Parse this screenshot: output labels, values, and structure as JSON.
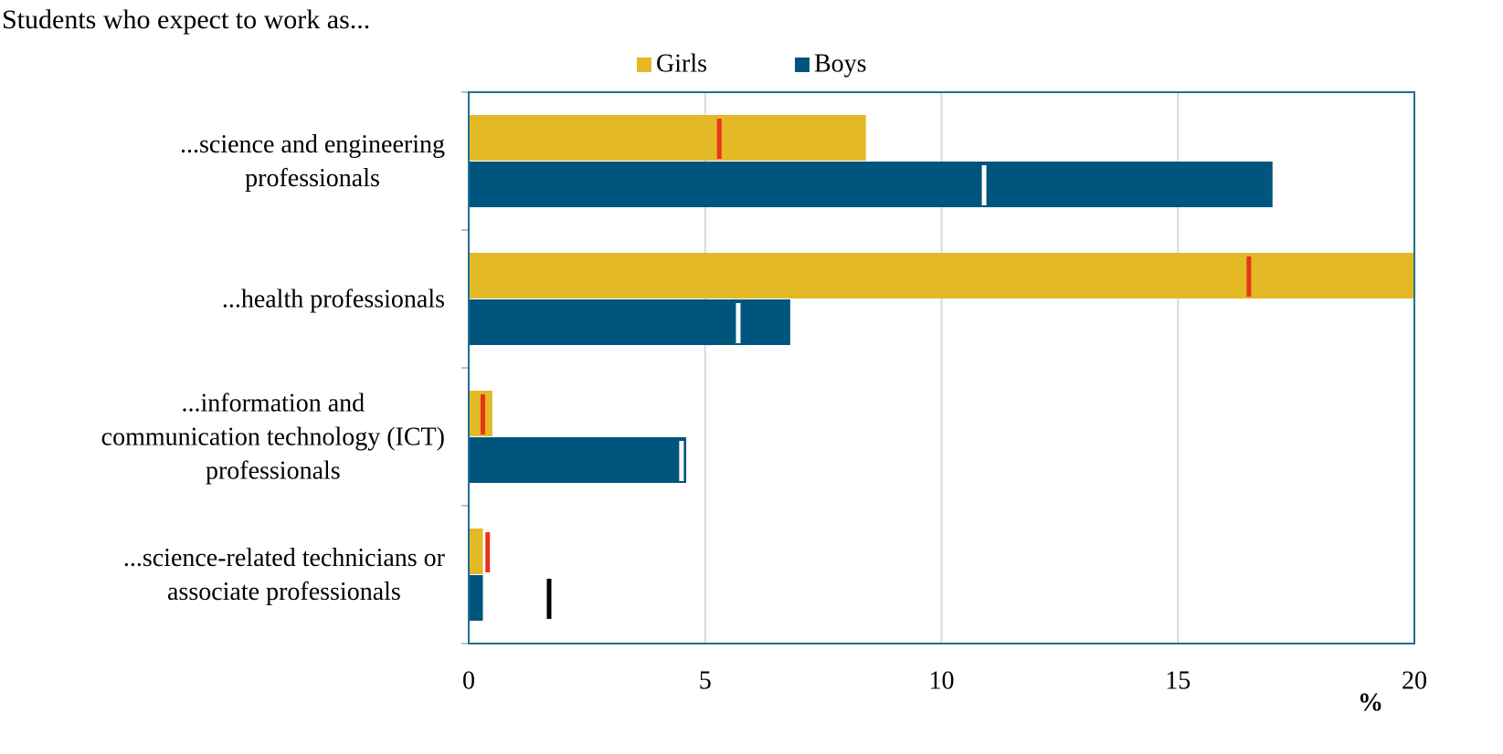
{
  "chart_data": {
    "type": "bar",
    "orientation": "horizontal",
    "title": "Students who expect to work as...",
    "categories": [
      "...science and engineering\nprofessionals",
      "...health professionals",
      "...information and\ncommunication technology (ICT)\nprofessionals",
      "...science-related technicians or\nassociate professionals"
    ],
    "series": [
      {
        "name": "Girls",
        "color": "#e3b926",
        "values": [
          8.4,
          20,
          0.5,
          0.3
        ],
        "markers": [
          5.3,
          16.5,
          0.3,
          0.4
        ],
        "marker_colors": [
          "#e8341c",
          "#e8341c",
          "#e8341c",
          "#e8341c"
        ]
      },
      {
        "name": "Boys",
        "color": "#00557f",
        "values": [
          17,
          6.8,
          4.6,
          0.3
        ],
        "markers": [
          10.9,
          5.7,
          4.5,
          1.7
        ],
        "marker_colors": [
          "#ffffff",
          "#ffffff",
          "#ffffff",
          "#000000"
        ]
      }
    ],
    "xlim": [
      0,
      20
    ],
    "xticks": [
      0,
      5,
      10,
      15,
      20
    ],
    "xlabel": "%",
    "grid": true,
    "legend": "top"
  }
}
